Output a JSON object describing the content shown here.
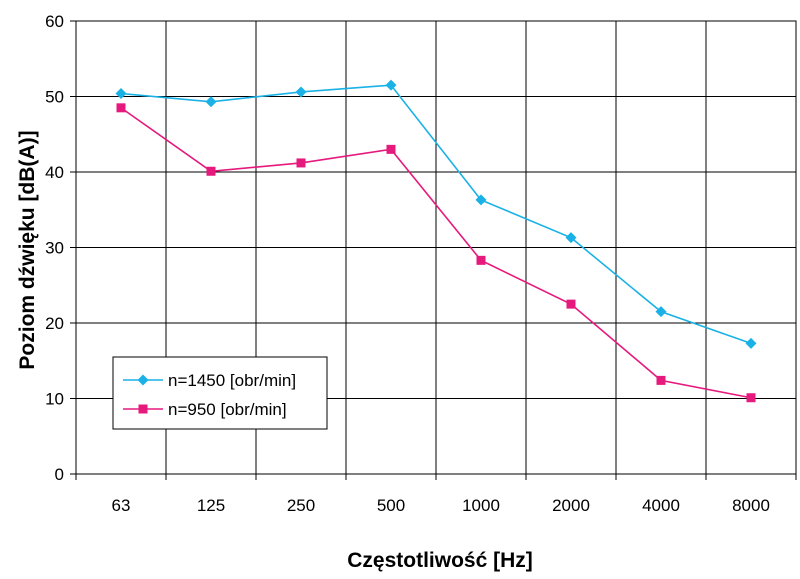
{
  "chart_data": {
    "type": "line",
    "categories": [
      "63",
      "125",
      "250",
      "500",
      "1000",
      "2000",
      "4000",
      "8000"
    ],
    "series": [
      {
        "name": "n=1450 [obr/min]",
        "color": "#1ab2e6",
        "marker": "diamond",
        "values": [
          50.4,
          49.3,
          50.6,
          51.5,
          36.3,
          31.3,
          21.5,
          17.3
        ]
      },
      {
        "name": "n=950 [obr/min]",
        "color": "#e6197d",
        "marker": "square",
        "values": [
          48.5,
          40.1,
          41.2,
          43.0,
          28.3,
          22.5,
          12.4,
          10.1
        ]
      }
    ],
    "xlabel": "Częstotliwość [Hz]",
    "ylabel": "Poziom dźwięku [dB(A)]",
    "ylim": [
      0,
      60
    ],
    "yticks": [
      "0",
      "10",
      "20",
      "30",
      "40",
      "50",
      "60"
    ],
    "grid": true,
    "legend_position": "lower-left"
  }
}
